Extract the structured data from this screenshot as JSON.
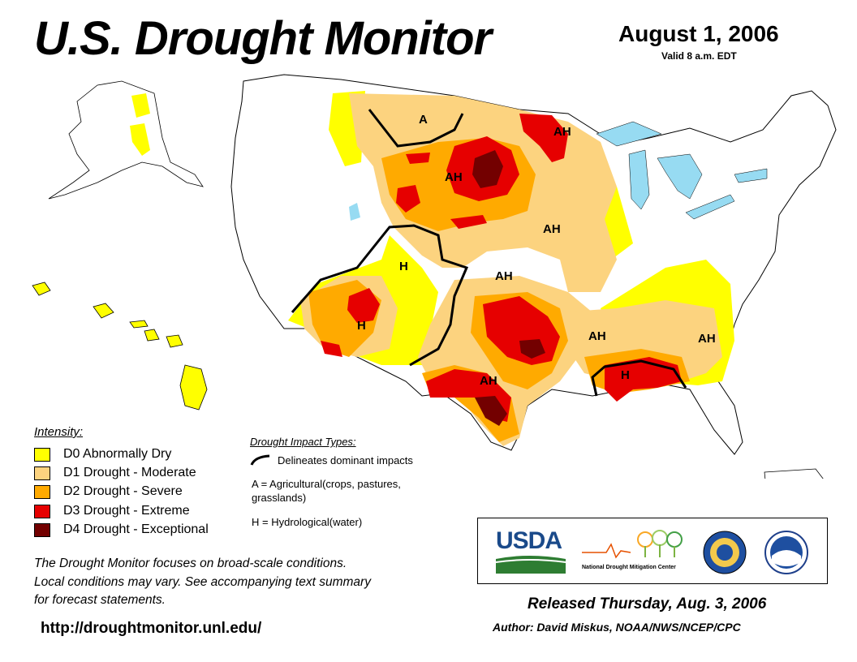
{
  "header": {
    "title": "U.S. Drought Monitor",
    "date": "August 1, 2006",
    "valid": "Valid 8 a.m. EDT"
  },
  "colors": {
    "d0": "#ffff00",
    "d1": "#fcd37f",
    "d2": "#ffaa00",
    "d3": "#e60000",
    "d4": "#730000",
    "water": "#97dbf2",
    "border": "#000000"
  },
  "legend": {
    "title": "Intensity:",
    "items": [
      {
        "code": "D0",
        "label": "D0 Abnormally Dry",
        "color": "#ffff00"
      },
      {
        "code": "D1",
        "label": "D1 Drought - Moderate",
        "color": "#fcd37f"
      },
      {
        "code": "D2",
        "label": "D2 Drought - Severe",
        "color": "#ffaa00"
      },
      {
        "code": "D3",
        "label": "D3 Drought - Extreme",
        "color": "#e60000"
      },
      {
        "code": "D4",
        "label": "D4 Drought - Exceptional",
        "color": "#730000"
      }
    ]
  },
  "impact_types": {
    "title": "Drought Impact Types:",
    "line_label": "Delineates dominant impacts",
    "a_label": "A = Agricultural(crops, pastures, grasslands)",
    "h_label": "H = Hydrological(water)"
  },
  "map_labels": {
    "mt_nd": "A",
    "mn": "AH",
    "sd": "AH",
    "ne": "AH",
    "ks": "AH",
    "co": "H",
    "az": "H",
    "tx": "AH",
    "ar": "AH",
    "la": "H",
    "sc": "AH"
  },
  "note": {
    "line1": "The Drought Monitor focuses on broad-scale conditions.",
    "line2": "Local conditions may vary. See accompanying text summary",
    "line3": "for forecast statements."
  },
  "url": "http://droughtmonitor.unl.edu/",
  "logos": {
    "usda": "USDA",
    "ndmc_1": "National",
    "ndmc_2": "Drought Mitigation Center"
  },
  "footer": {
    "released": "Released Thursday, Aug. 3, 2006",
    "author": "Author: David Miskus, NOAA/NWS/NCEP/CPC"
  }
}
